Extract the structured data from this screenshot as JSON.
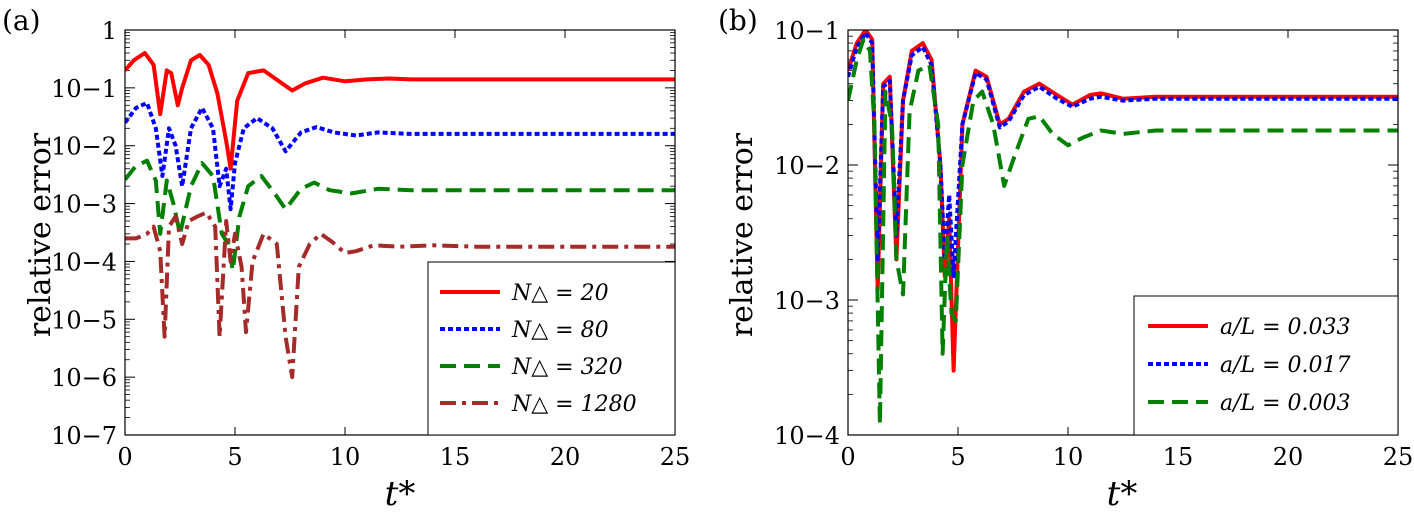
{
  "chart_data": [
    {
      "type": "line",
      "panel_label": "(a)",
      "xlabel": "t*",
      "ylabel": "relative error",
      "xlim": [
        0,
        25
      ],
      "ylim_log10": [
        -7,
        0
      ],
      "y_scale": "log",
      "x_ticks": [
        "0",
        "5",
        "10",
        "15",
        "20",
        "25"
      ],
      "y_ticks": [
        "10−7",
        "10−6",
        "10−5",
        "10−4",
        "10−3",
        "10−2",
        "10−1",
        "1"
      ],
      "legend_position": "bottom-right",
      "series": [
        {
          "name": "N△ = 20",
          "color": "#ff0000",
          "dash": "solid",
          "x": [
            0,
            0.4,
            0.9,
            1.3,
            1.6,
            1.9,
            2.1,
            2.4,
            2.6,
            3.0,
            3.4,
            3.8,
            4.2,
            4.6,
            4.8,
            5.1,
            5.6,
            6.3,
            7.0,
            7.6,
            8.2,
            9.0,
            10,
            11,
            12,
            13,
            14,
            15,
            17,
            20,
            25
          ],
          "y": [
            0.2,
            0.3,
            0.4,
            0.25,
            0.035,
            0.2,
            0.18,
            0.05,
            0.1,
            0.3,
            0.37,
            0.25,
            0.08,
            0.012,
            0.004,
            0.06,
            0.18,
            0.2,
            0.13,
            0.09,
            0.12,
            0.15,
            0.13,
            0.14,
            0.145,
            0.14,
            0.14,
            0.14,
            0.14,
            0.14,
            0.14
          ]
        },
        {
          "name": "N△ = 80",
          "color": "#0000ff",
          "dash": "dotted",
          "x": [
            0,
            0.5,
            1.0,
            1.4,
            1.7,
            2.0,
            2.3,
            2.6,
            3.0,
            3.5,
            4.0,
            4.3,
            4.6,
            4.8,
            5.0,
            5.4,
            6.0,
            6.7,
            7.3,
            8.0,
            8.7,
            9.5,
            10.5,
            11.5,
            13,
            15,
            20,
            25
          ],
          "y": [
            0.025,
            0.045,
            0.055,
            0.02,
            0.003,
            0.02,
            0.01,
            0.002,
            0.02,
            0.045,
            0.02,
            0.002,
            0.004,
            0.0008,
            0.005,
            0.02,
            0.03,
            0.02,
            0.008,
            0.017,
            0.021,
            0.017,
            0.015,
            0.017,
            0.016,
            0.016,
            0.016,
            0.016
          ]
        },
        {
          "name": "N△ = 320",
          "color": "#008000",
          "dash": "dashed",
          "x": [
            0,
            0.5,
            1.0,
            1.4,
            1.6,
            1.9,
            2.2,
            2.5,
            3.0,
            3.5,
            4.0,
            4.4,
            4.7,
            4.9,
            5.2,
            5.6,
            6.2,
            6.8,
            7.3,
            8.0,
            8.6,
            9.3,
            10.3,
            11.5,
            13,
            15,
            20,
            25
          ],
          "y": [
            0.0026,
            0.0045,
            0.0055,
            0.0025,
            0.0003,
            0.0025,
            0.001,
            0.0003,
            0.002,
            0.005,
            0.003,
            0.0003,
            0.0002,
            7e-05,
            0.0006,
            0.002,
            0.003,
            0.0015,
            0.0008,
            0.0018,
            0.0023,
            0.0017,
            0.0015,
            0.0018,
            0.0017,
            0.0017,
            0.0017,
            0.0017
          ]
        },
        {
          "name": "N△ = 1280",
          "color": "#a52a2a",
          "dash": "dashdot",
          "x": [
            0,
            0.5,
            1.0,
            1.3,
            1.6,
            1.8,
            2.0,
            2.3,
            2.6,
            2.9,
            3.3,
            3.7,
            4.1,
            4.3,
            4.6,
            4.8,
            5.0,
            5.3,
            5.5,
            5.8,
            6.3,
            6.9,
            7.3,
            7.6,
            7.9,
            8.4,
            8.9,
            9.4,
            10.0,
            10.5,
            11.3,
            12.5,
            14,
            16,
            20,
            25
          ],
          "y": [
            0.00025,
            0.00025,
            0.0003,
            0.0004,
            0.00015,
            5e-06,
            0.0004,
            0.0006,
            0.0002,
            0.0005,
            0.0006,
            0.0007,
            0.0004,
            5e-06,
            0.0005,
            0.0001,
            0.0003,
            8e-05,
            6e-06,
            0.0001,
            0.0003,
            0.0002,
            5e-06,
            1e-06,
            8e-05,
            0.0002,
            0.0003,
            0.00022,
            0.00014,
            0.00015,
            0.00019,
            0.00018,
            0.00019,
            0.00018,
            0.00018,
            0.00018
          ]
        }
      ]
    },
    {
      "type": "line",
      "panel_label": "(b)",
      "xlabel": "t*",
      "ylabel": "relative error",
      "xlim": [
        0,
        25
      ],
      "ylim_log10": [
        -4,
        -1
      ],
      "y_scale": "log",
      "x_ticks": [
        "0",
        "5",
        "10",
        "15",
        "20",
        "25"
      ],
      "y_ticks": [
        "10−4",
        "10−3",
        "10−2",
        "10−1"
      ],
      "legend_position": "bottom-right",
      "series": [
        {
          "name": "a/L = 0.033",
          "color": "#ff0000",
          "dash": "solid",
          "x": [
            0,
            0.4,
            0.8,
            1.1,
            1.35,
            1.6,
            1.9,
            2.2,
            2.5,
            2.9,
            3.4,
            3.8,
            4.2,
            4.4,
            4.6,
            4.8,
            5.2,
            5.8,
            6.3,
            6.9,
            7.3,
            8.0,
            8.7,
            9.5,
            10.2,
            11.0,
            11.5,
            12.5,
            14,
            16,
            20,
            25
          ],
          "y": [
            0.05,
            0.08,
            0.1,
            0.085,
            0.0012,
            0.04,
            0.045,
            0.002,
            0.03,
            0.07,
            0.08,
            0.06,
            0.01,
            0.0015,
            0.004,
            0.0003,
            0.02,
            0.05,
            0.045,
            0.02,
            0.022,
            0.035,
            0.04,
            0.033,
            0.028,
            0.033,
            0.034,
            0.031,
            0.032,
            0.032,
            0.032,
            0.032
          ]
        },
        {
          "name": "a/L = 0.017",
          "color": "#0000ff",
          "dash": "dotted",
          "x": [
            0,
            0.4,
            0.8,
            1.1,
            1.35,
            1.6,
            1.9,
            2.2,
            2.5,
            2.9,
            3.4,
            3.8,
            4.2,
            4.4,
            4.6,
            4.8,
            5.2,
            5.8,
            6.3,
            6.9,
            7.3,
            8.0,
            8.7,
            9.5,
            10.2,
            11.0,
            11.5,
            12.5,
            14,
            16,
            20,
            25
          ],
          "y": [
            0.045,
            0.075,
            0.095,
            0.08,
            0.002,
            0.038,
            0.042,
            0.003,
            0.03,
            0.065,
            0.075,
            0.055,
            0.01,
            0.002,
            0.006,
            0.0015,
            0.02,
            0.048,
            0.043,
            0.019,
            0.021,
            0.033,
            0.038,
            0.031,
            0.027,
            0.031,
            0.032,
            0.03,
            0.031,
            0.031,
            0.031,
            0.031
          ]
        },
        {
          "name": "a/L = 0.003",
          "color": "#008000",
          "dash": "dashed",
          "x": [
            0,
            0.4,
            0.7,
            1.0,
            1.2,
            1.45,
            1.7,
            2.0,
            2.2,
            2.5,
            2.8,
            3.2,
            3.7,
            4.1,
            4.3,
            4.5,
            4.7,
            4.9,
            5.2,
            5.7,
            6.1,
            6.6,
            7.1,
            7.6,
            8.2,
            8.7,
            9.3,
            10.0,
            10.7,
            11.5,
            12.5,
            14,
            16,
            20,
            25
          ],
          "y": [
            0.03,
            0.06,
            0.085,
            0.07,
            0.02,
            0.00012,
            0.035,
            0.02,
            0.002,
            0.0011,
            0.025,
            0.05,
            0.055,
            0.02,
            0.0004,
            0.003,
            0.0008,
            0.0007,
            0.01,
            0.03,
            0.035,
            0.02,
            0.007,
            0.012,
            0.022,
            0.023,
            0.017,
            0.014,
            0.016,
            0.018,
            0.017,
            0.018,
            0.018,
            0.018,
            0.018
          ]
        }
      ]
    }
  ]
}
